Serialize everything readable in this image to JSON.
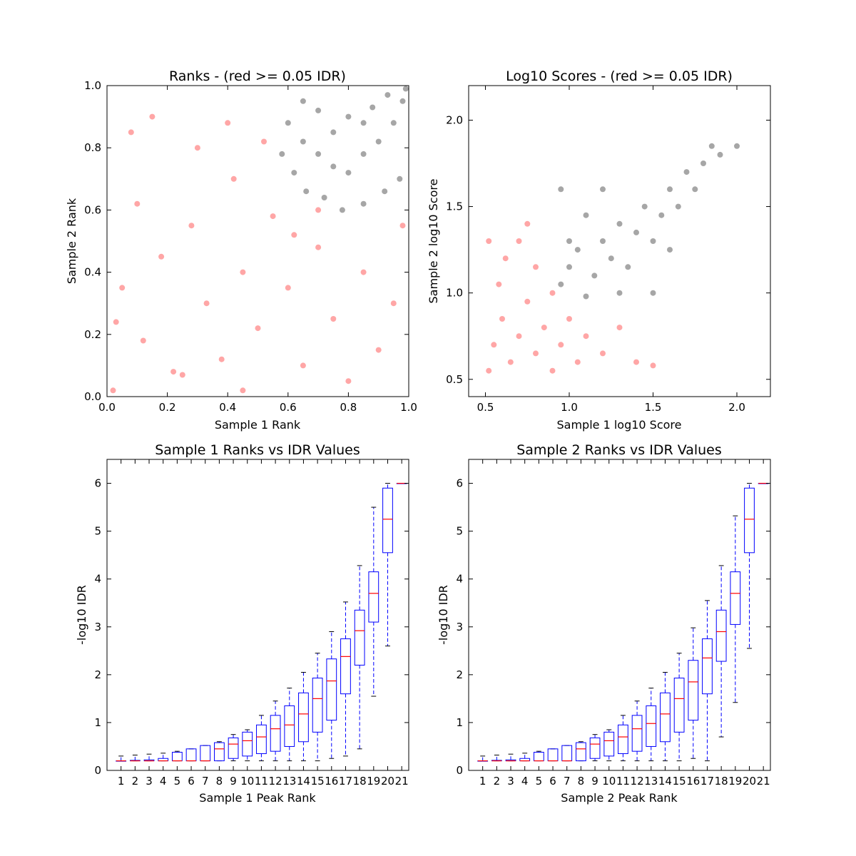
{
  "chart_data": [
    {
      "type": "scatter",
      "title": "Ranks - (red >= 0.05 IDR)",
      "xlabel": "Sample 1 Rank",
      "ylabel": "Sample 2 Rank",
      "xlim": [
        0.0,
        1.0
      ],
      "ylim": [
        0.0,
        1.0
      ],
      "xticks": [
        "0.0",
        "0.2",
        "0.4",
        "0.6",
        "0.8",
        "1.0"
      ],
      "yticks": [
        "0.0",
        "0.2",
        "0.4",
        "0.6",
        "0.8",
        "1.0"
      ],
      "colors": {
        "pass": "#000000",
        "fail": "#ff0000"
      },
      "series": [
        {
          "color": "#ff0000",
          "points": [
            [
              0.05,
              0.35
            ],
            [
              0.03,
              0.24
            ],
            [
              0.1,
              0.62
            ],
            [
              0.12,
              0.18
            ],
            [
              0.18,
              0.45
            ],
            [
              0.22,
              0.08
            ],
            [
              0.25,
              0.07
            ],
            [
              0.28,
              0.55
            ],
            [
              0.33,
              0.3
            ],
            [
              0.38,
              0.12
            ],
            [
              0.42,
              0.7
            ],
            [
              0.45,
              0.4
            ],
            [
              0.5,
              0.22
            ],
            [
              0.55,
              0.58
            ],
            [
              0.6,
              0.35
            ],
            [
              0.65,
              0.1
            ],
            [
              0.7,
              0.48
            ],
            [
              0.75,
              0.25
            ],
            [
              0.8,
              0.05
            ],
            [
              0.85,
              0.4
            ],
            [
              0.9,
              0.15
            ],
            [
              0.95,
              0.3
            ],
            [
              0.08,
              0.85
            ],
            [
              0.15,
              0.9
            ],
            [
              0.3,
              0.8
            ],
            [
              0.4,
              0.88
            ],
            [
              0.52,
              0.82
            ],
            [
              0.62,
              0.52
            ],
            [
              0.7,
              0.6
            ],
            [
              0.02,
              0.02
            ],
            [
              0.45,
              0.02
            ],
            [
              0.98,
              0.55
            ]
          ]
        },
        {
          "color": "#000000",
          "points": [
            [
              0.58,
              0.78
            ],
            [
              0.62,
              0.72
            ],
            [
              0.66,
              0.66
            ],
            [
              0.72,
              0.64
            ],
            [
              0.78,
              0.6
            ],
            [
              0.85,
              0.62
            ],
            [
              0.92,
              0.66
            ],
            [
              0.97,
              0.7
            ],
            [
              0.6,
              0.88
            ],
            [
              0.65,
              0.82
            ],
            [
              0.7,
              0.78
            ],
            [
              0.75,
              0.74
            ],
            [
              0.8,
              0.72
            ],
            [
              0.85,
              0.78
            ],
            [
              0.9,
              0.82
            ],
            [
              0.95,
              0.88
            ],
            [
              0.98,
              0.95
            ],
            [
              0.7,
              0.92
            ],
            [
              0.8,
              0.9
            ],
            [
              0.88,
              0.93
            ],
            [
              0.93,
              0.97
            ],
            [
              0.99,
              0.99
            ],
            [
              0.65,
              0.95
            ],
            [
              0.75,
              0.85
            ],
            [
              0.85,
              0.88
            ]
          ]
        }
      ]
    },
    {
      "type": "scatter",
      "title": "Log10 Scores - (red >= 0.05 IDR)",
      "xlabel": "Sample 1 log10 Score",
      "ylabel": "Sample 2 log10 Score",
      "xlim": [
        0.4,
        2.2
      ],
      "ylim": [
        0.4,
        2.2
      ],
      "xticks": [
        "0.5",
        "1.0",
        "1.5",
        "2.0"
      ],
      "yticks": [
        "0.5",
        "1.0",
        "1.5",
        "2.0"
      ],
      "colors": {
        "pass": "#000000",
        "fail": "#ff0000"
      },
      "series": [
        {
          "color": "#ff0000",
          "points": [
            [
              0.52,
              0.55
            ],
            [
              0.55,
              0.7
            ],
            [
              0.6,
              0.85
            ],
            [
              0.65,
              0.6
            ],
            [
              0.7,
              0.75
            ],
            [
              0.75,
              0.95
            ],
            [
              0.8,
              0.65
            ],
            [
              0.85,
              0.8
            ],
            [
              0.9,
              0.55
            ],
            [
              0.95,
              0.7
            ],
            [
              1.0,
              0.85
            ],
            [
              1.05,
              0.6
            ],
            [
              0.58,
              1.05
            ],
            [
              0.62,
              1.2
            ],
            [
              0.7,
              1.3
            ],
            [
              0.8,
              1.15
            ],
            [
              0.9,
              1.0
            ],
            [
              1.1,
              0.75
            ],
            [
              1.2,
              0.65
            ],
            [
              1.3,
              0.8
            ],
            [
              1.4,
              0.6
            ],
            [
              1.5,
              0.58
            ],
            [
              0.52,
              1.3
            ],
            [
              0.75,
              1.4
            ]
          ]
        },
        {
          "color": "#000000",
          "points": [
            [
              0.95,
              1.05
            ],
            [
              1.0,
              1.15
            ],
            [
              1.05,
              1.25
            ],
            [
              1.1,
              0.98
            ],
            [
              1.15,
              1.1
            ],
            [
              1.2,
              1.3
            ],
            [
              1.25,
              1.2
            ],
            [
              1.3,
              1.4
            ],
            [
              1.35,
              1.15
            ],
            [
              1.4,
              1.35
            ],
            [
              1.45,
              1.5
            ],
            [
              1.5,
              1.3
            ],
            [
              1.55,
              1.45
            ],
            [
              1.6,
              1.6
            ],
            [
              1.65,
              1.5
            ],
            [
              1.7,
              1.7
            ],
            [
              1.75,
              1.6
            ],
            [
              1.8,
              1.75
            ],
            [
              1.85,
              1.85
            ],
            [
              1.9,
              1.8
            ],
            [
              2.0,
              1.85
            ],
            [
              1.1,
              1.45
            ],
            [
              1.0,
              1.3
            ],
            [
              1.3,
              1.0
            ],
            [
              1.5,
              1.0
            ],
            [
              0.95,
              1.6
            ],
            [
              1.2,
              1.6
            ],
            [
              1.6,
              1.25
            ]
          ]
        }
      ]
    },
    {
      "type": "box",
      "title": "Sample 1 Ranks vs IDR Values",
      "xlabel": "Sample 1 Peak Rank",
      "ylabel": "-log10 IDR",
      "ylim": [
        0,
        6.5
      ],
      "yticks": [
        "0",
        "1",
        "2",
        "3",
        "4",
        "5",
        "6"
      ],
      "categories": [
        "1",
        "2",
        "3",
        "4",
        "5",
        "6",
        "7",
        "8",
        "9",
        "10",
        "11",
        "12",
        "13",
        "14",
        "15",
        "16",
        "17",
        "18",
        "19",
        "20",
        "21"
      ],
      "box_color": "#0000ff",
      "median_color": "#ff0000",
      "boxes": [
        {
          "q1": 0.2,
          "median": 0.2,
          "q3": 0.2,
          "low": 0.2,
          "high": 0.3
        },
        {
          "q1": 0.2,
          "median": 0.2,
          "q3": 0.21,
          "low": 0.2,
          "high": 0.32
        },
        {
          "q1": 0.2,
          "median": 0.2,
          "q3": 0.22,
          "low": 0.2,
          "high": 0.34
        },
        {
          "q1": 0.2,
          "median": 0.2,
          "q3": 0.25,
          "low": 0.2,
          "high": 0.36
        },
        {
          "q1": 0.2,
          "median": 0.2,
          "q3": 0.38,
          "low": 0.2,
          "high": 0.4
        },
        {
          "q1": 0.2,
          "median": 0.2,
          "q3": 0.45,
          "low": 0.2,
          "high": 0.45
        },
        {
          "q1": 0.2,
          "median": 0.2,
          "q3": 0.52,
          "low": 0.2,
          "high": 0.52
        },
        {
          "q1": 0.2,
          "median": 0.45,
          "q3": 0.58,
          "low": 0.2,
          "high": 0.6
        },
        {
          "q1": 0.25,
          "median": 0.55,
          "q3": 0.68,
          "low": 0.2,
          "high": 0.75
        },
        {
          "q1": 0.3,
          "median": 0.62,
          "q3": 0.8,
          "low": 0.2,
          "high": 0.85
        },
        {
          "q1": 0.35,
          "median": 0.7,
          "q3": 0.95,
          "low": 0.2,
          "high": 1.15
        },
        {
          "q1": 0.4,
          "median": 0.87,
          "q3": 1.15,
          "low": 0.2,
          "high": 1.45
        },
        {
          "q1": 0.5,
          "median": 0.95,
          "q3": 1.35,
          "low": 0.2,
          "high": 1.72
        },
        {
          "q1": 0.6,
          "median": 1.18,
          "q3": 1.62,
          "low": 0.2,
          "high": 2.05
        },
        {
          "q1": 0.8,
          "median": 1.5,
          "q3": 1.93,
          "low": 0.2,
          "high": 2.45
        },
        {
          "q1": 1.05,
          "median": 1.87,
          "q3": 2.33,
          "low": 0.25,
          "high": 2.9
        },
        {
          "q1": 1.6,
          "median": 2.38,
          "q3": 2.75,
          "low": 0.3,
          "high": 3.52
        },
        {
          "q1": 2.2,
          "median": 2.92,
          "q3": 3.35,
          "low": 0.45,
          "high": 4.28
        },
        {
          "q1": 3.1,
          "median": 3.7,
          "q3": 4.15,
          "low": 1.55,
          "high": 5.5
        },
        {
          "q1": 4.55,
          "median": 5.25,
          "q3": 5.9,
          "low": 2.6,
          "high": 6.0
        },
        {
          "q1": 6.0,
          "median": 6.0,
          "q3": 6.0,
          "low": 6.0,
          "high": 6.0
        }
      ]
    },
    {
      "type": "box",
      "title": "Sample 2 Ranks vs IDR Values",
      "xlabel": "Sample 2 Peak Rank",
      "ylabel": "-log10 IDR",
      "ylim": [
        0,
        6.5
      ],
      "yticks": [
        "0",
        "1",
        "2",
        "3",
        "4",
        "5",
        "6"
      ],
      "categories": [
        "1",
        "2",
        "3",
        "4",
        "5",
        "6",
        "7",
        "8",
        "9",
        "10",
        "11",
        "12",
        "13",
        "14",
        "15",
        "16",
        "17",
        "18",
        "19",
        "20",
        "21"
      ],
      "box_color": "#0000ff",
      "median_color": "#ff0000",
      "boxes": [
        {
          "q1": 0.2,
          "median": 0.2,
          "q3": 0.2,
          "low": 0.2,
          "high": 0.3
        },
        {
          "q1": 0.2,
          "median": 0.2,
          "q3": 0.21,
          "low": 0.2,
          "high": 0.32
        },
        {
          "q1": 0.2,
          "median": 0.2,
          "q3": 0.22,
          "low": 0.2,
          "high": 0.34
        },
        {
          "q1": 0.2,
          "median": 0.2,
          "q3": 0.25,
          "low": 0.2,
          "high": 0.36
        },
        {
          "q1": 0.2,
          "median": 0.2,
          "q3": 0.38,
          "low": 0.2,
          "high": 0.4
        },
        {
          "q1": 0.2,
          "median": 0.2,
          "q3": 0.45,
          "low": 0.2,
          "high": 0.45
        },
        {
          "q1": 0.2,
          "median": 0.2,
          "q3": 0.52,
          "low": 0.2,
          "high": 0.52
        },
        {
          "q1": 0.2,
          "median": 0.45,
          "q3": 0.58,
          "low": 0.2,
          "high": 0.6
        },
        {
          "q1": 0.25,
          "median": 0.55,
          "q3": 0.68,
          "low": 0.2,
          "high": 0.75
        },
        {
          "q1": 0.3,
          "median": 0.62,
          "q3": 0.8,
          "low": 0.2,
          "high": 0.85
        },
        {
          "q1": 0.35,
          "median": 0.7,
          "q3": 0.95,
          "low": 0.2,
          "high": 1.15
        },
        {
          "q1": 0.4,
          "median": 0.87,
          "q3": 1.15,
          "low": 0.2,
          "high": 1.45
        },
        {
          "q1": 0.5,
          "median": 0.98,
          "q3": 1.35,
          "low": 0.2,
          "high": 1.72
        },
        {
          "q1": 0.6,
          "median": 1.18,
          "q3": 1.62,
          "low": 0.2,
          "high": 2.05
        },
        {
          "q1": 0.8,
          "median": 1.5,
          "q3": 1.93,
          "low": 0.2,
          "high": 2.45
        },
        {
          "q1": 1.05,
          "median": 1.85,
          "q3": 2.3,
          "low": 0.25,
          "high": 2.98
        },
        {
          "q1": 1.6,
          "median": 2.35,
          "q3": 2.75,
          "low": 0.2,
          "high": 3.55
        },
        {
          "q1": 2.28,
          "median": 2.9,
          "q3": 3.35,
          "low": 0.7,
          "high": 4.28
        },
        {
          "q1": 3.05,
          "median": 3.7,
          "q3": 4.15,
          "low": 1.42,
          "high": 5.32
        },
        {
          "q1": 4.55,
          "median": 5.25,
          "q3": 5.9,
          "low": 2.55,
          "high": 6.0
        },
        {
          "q1": 6.0,
          "median": 6.0,
          "q3": 6.0,
          "low": 6.0,
          "high": 6.0
        }
      ]
    }
  ]
}
